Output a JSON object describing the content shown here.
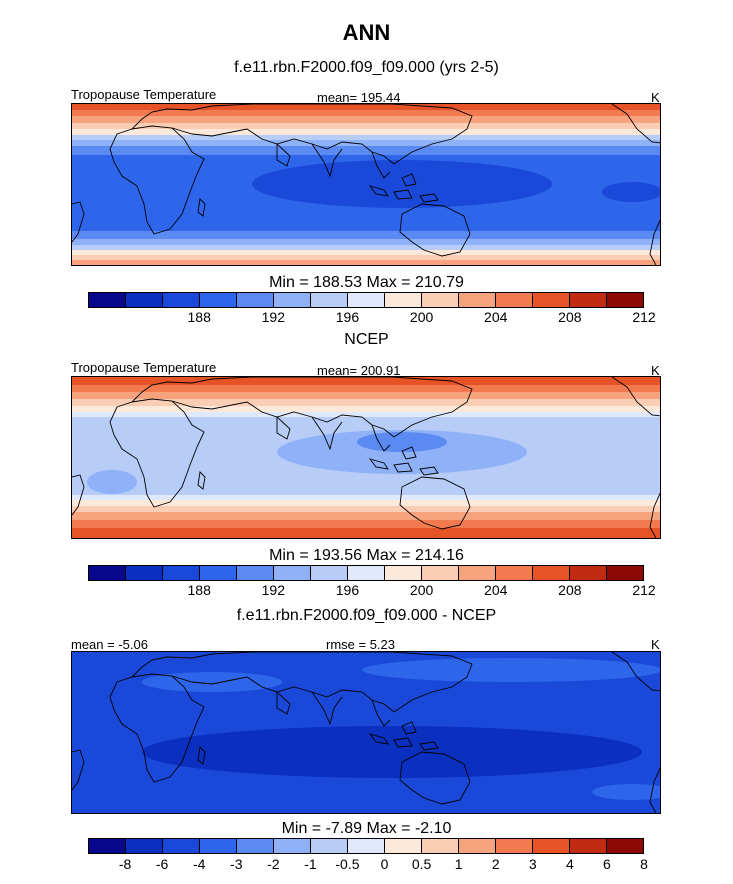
{
  "title": "ANN",
  "colorbar_temp": {
    "colors": [
      "#08088c",
      "#0b2fbf",
      "#1a49d9",
      "#2d66eb",
      "#5b8af2",
      "#8fb1f7",
      "#b7cdf8",
      "#dfe9fb",
      "#fde9d9",
      "#fbcdb4",
      "#f7a47e",
      "#f27a4e",
      "#e65326",
      "#bf2c12",
      "#8c0a06"
    ],
    "ticks": [
      {
        "pos": 3,
        "label": "188"
      },
      {
        "pos": 5,
        "label": "192"
      },
      {
        "pos": 7,
        "label": "196"
      },
      {
        "pos": 9,
        "label": "200"
      },
      {
        "pos": 11,
        "label": "204"
      },
      {
        "pos": 13,
        "label": "208"
      },
      {
        "pos": 15,
        "label": "212"
      }
    ]
  },
  "colorbar_diff": {
    "colors": [
      "#08088c",
      "#0b2fbf",
      "#1a49d9",
      "#2d66eb",
      "#5b8af2",
      "#8fb1f7",
      "#b7cdf8",
      "#dfe9fb",
      "#fde9d9",
      "#fbcdb4",
      "#f7a47e",
      "#f27a4e",
      "#e65326",
      "#bf2c12",
      "#8c0a06"
    ],
    "ticks": [
      {
        "pos": 1,
        "label": "-8"
      },
      {
        "pos": 2,
        "label": "-6"
      },
      {
        "pos": 3,
        "label": "-4"
      },
      {
        "pos": 4,
        "label": "-3"
      },
      {
        "pos": 5,
        "label": "-2"
      },
      {
        "pos": 6,
        "label": "-1"
      },
      {
        "pos": 7,
        "label": "-0.5"
      },
      {
        "pos": 8,
        "label": "0"
      },
      {
        "pos": 9,
        "label": "0.5"
      },
      {
        "pos": 10,
        "label": "1"
      },
      {
        "pos": 11,
        "label": "2"
      },
      {
        "pos": 12,
        "label": "3"
      },
      {
        "pos": 13,
        "label": "4"
      },
      {
        "pos": 14,
        "label": "6"
      },
      {
        "pos": 15,
        "label": "8"
      }
    ]
  },
  "panels": [
    {
      "title": "f.e11.rbn.F2000.f09_f09.000 (yrs 2-5)",
      "variable": "Tropopause Temperature",
      "mean_text": "mean= 195.44",
      "units": "K",
      "stats": "Min = 188.53 Max = 210.79",
      "bands": [
        {
          "y": 0,
          "h": 6,
          "color": "#e65326"
        },
        {
          "y": 6,
          "h": 6,
          "color": "#f27a4e"
        },
        {
          "y": 12,
          "h": 7,
          "color": "#f7a47e"
        },
        {
          "y": 19,
          "h": 6,
          "color": "#fbcdb4"
        },
        {
          "y": 25,
          "h": 6,
          "color": "#fde9d9"
        },
        {
          "y": 31,
          "h": 5,
          "color": "#b7cdf8"
        },
        {
          "y": 36,
          "h": 6,
          "color": "#8fb1f7"
        },
        {
          "y": 42,
          "h": 9,
          "color": "#5b8af2"
        },
        {
          "y": 51,
          "h": 76,
          "color": "#2d66eb"
        },
        {
          "y": 127,
          "h": 8,
          "color": "#5b8af2"
        },
        {
          "y": 135,
          "h": 6,
          "color": "#8fb1f7"
        },
        {
          "y": 141,
          "h": 5,
          "color": "#b7cdf8"
        },
        {
          "y": 146,
          "h": 5,
          "color": "#fde9d9"
        },
        {
          "y": 151,
          "h": 5,
          "color": "#fbcdb4"
        },
        {
          "y": 156,
          "h": 7,
          "color": "#f7a47e"
        }
      ],
      "blobs": [
        {
          "cx": 330,
          "cy": 80,
          "rx": 150,
          "ry": 24,
          "color": "#1a49d9"
        },
        {
          "cx": 560,
          "cy": 88,
          "rx": 30,
          "ry": 10,
          "color": "#1a49d9"
        }
      ]
    },
    {
      "title": "NCEP",
      "variable": "Tropopause Temperature",
      "mean_text": "mean= 200.91",
      "units": "K",
      "stats": "Min = 193.56 Max = 214.16",
      "bands": [
        {
          "y": 0,
          "h": 8,
          "color": "#e65326"
        },
        {
          "y": 8,
          "h": 7,
          "color": "#f27a4e"
        },
        {
          "y": 15,
          "h": 7,
          "color": "#f7a47e"
        },
        {
          "y": 22,
          "h": 7,
          "color": "#fbcdb4"
        },
        {
          "y": 29,
          "h": 6,
          "color": "#fde9d9"
        },
        {
          "y": 35,
          "h": 5,
          "color": "#dfe9fb"
        },
        {
          "y": 40,
          "h": 78,
          "color": "#b7cdf8"
        },
        {
          "y": 118,
          "h": 5,
          "color": "#dfe9fb"
        },
        {
          "y": 123,
          "h": 6,
          "color": "#fde9d9"
        },
        {
          "y": 129,
          "h": 6,
          "color": "#fbcdb4"
        },
        {
          "y": 135,
          "h": 8,
          "color": "#f7a47e"
        },
        {
          "y": 143,
          "h": 8,
          "color": "#f27a4e"
        },
        {
          "y": 151,
          "h": 12,
          "color": "#e65326"
        }
      ],
      "blobs": [
        {
          "cx": 330,
          "cy": 75,
          "rx": 125,
          "ry": 22,
          "color": "#8fb1f7"
        },
        {
          "cx": 330,
          "cy": 65,
          "rx": 45,
          "ry": 10,
          "color": "#5b8af2"
        },
        {
          "cx": 40,
          "cy": 105,
          "rx": 25,
          "ry": 12,
          "color": "#8fb1f7"
        }
      ]
    },
    {
      "title": "f.e11.rbn.F2000.f09_f09.000 - NCEP",
      "variable": "",
      "mean_text": "mean =  -5.06",
      "rmse_text": "rmse =   5.23",
      "units": "K",
      "stats": "Min =  -7.89 Max =  -2.10",
      "bands": [
        {
          "y": 0,
          "h": 163,
          "color": "#1a49d9"
        }
      ],
      "blobs": [
        {
          "cx": 440,
          "cy": 18,
          "rx": 150,
          "ry": 12,
          "color": "#2d66eb"
        },
        {
          "cx": 140,
          "cy": 30,
          "rx": 70,
          "ry": 10,
          "color": "#2d66eb"
        },
        {
          "cx": 320,
          "cy": 100,
          "rx": 250,
          "ry": 26,
          "color": "#0b2fbf"
        },
        {
          "cx": 560,
          "cy": 140,
          "rx": 40,
          "ry": 8,
          "color": "#2d66eb"
        }
      ]
    }
  ]
}
